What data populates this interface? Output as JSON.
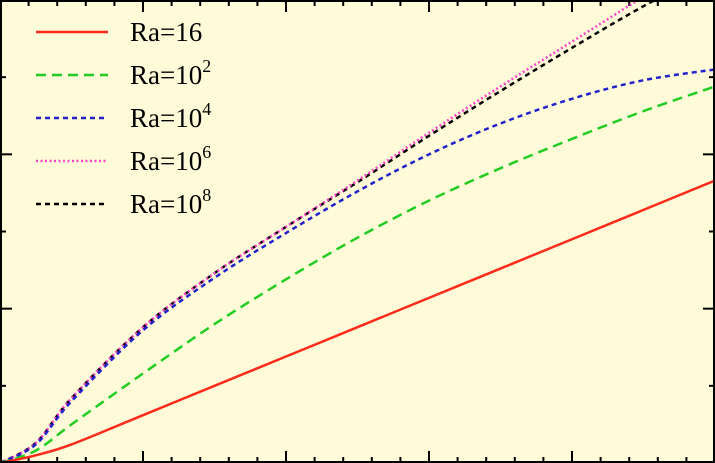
{
  "chart_data": {
    "type": "line",
    "title": "",
    "xlabel": "",
    "ylabel": "",
    "xlim": [
      0,
      5
    ],
    "ylim": [
      0,
      3
    ],
    "x_ticks_major": [
      0,
      1,
      2,
      3,
      4,
      5
    ],
    "y_ticks_major": [
      0,
      1,
      2,
      3
    ],
    "grid": false,
    "legend_position": "top-left",
    "background": "#fffbd8",
    "series": [
      {
        "name": "Ra=16",
        "label_base": "Ra=16",
        "label_exp": "",
        "color": "#ff2a1a",
        "dash": "solid",
        "x": [
          0,
          0.25,
          0.5,
          1,
          1.5,
          2,
          2.5,
          3,
          3.5,
          4,
          4.5,
          5
        ],
        "y": [
          0,
          0.05,
          0.12,
          0.31,
          0.5,
          0.69,
          0.88,
          1.07,
          1.26,
          1.45,
          1.64,
          1.83
        ]
      },
      {
        "name": "Ra=10^2",
        "label_base": "Ra=10",
        "label_exp": "2",
        "color": "#22cc22",
        "dash": "dashed",
        "x": [
          0,
          0.25,
          0.5,
          1,
          1.5,
          2,
          2.5,
          3,
          3.5,
          4,
          4.5,
          5
        ],
        "y": [
          0,
          0.08,
          0.25,
          0.58,
          0.9,
          1.19,
          1.46,
          1.7,
          1.91,
          2.1,
          2.28,
          2.44
        ]
      },
      {
        "name": "Ra=10^4",
        "label_base": "Ra=10",
        "label_exp": "4",
        "color": "#2222cc",
        "dash": "short-dashed",
        "x": [
          0,
          0.25,
          0.5,
          1,
          1.5,
          2,
          2.5,
          3,
          3.5,
          4,
          4.5,
          5
        ],
        "y": [
          0,
          0.12,
          0.4,
          0.86,
          1.2,
          1.49,
          1.76,
          2.0,
          2.2,
          2.36,
          2.48,
          2.55
        ]
      },
      {
        "name": "Ra=10^6",
        "label_base": "Ra=10",
        "label_exp": "6",
        "color": "#ff44cc",
        "dash": "dotted",
        "x": [
          0,
          0.25,
          0.5,
          1,
          1.5,
          2,
          2.5,
          3,
          3.5,
          4,
          4.5,
          5
        ],
        "y": [
          0,
          0.13,
          0.42,
          0.88,
          1.23,
          1.53,
          1.83,
          2.14,
          2.44,
          2.73,
          3.02,
          3.29
        ]
      },
      {
        "name": "Ra=10^8",
        "label_base": "Ra=10",
        "label_exp": "8",
        "color": "#000000",
        "dash": "short-dashed",
        "x": [
          0,
          0.25,
          0.5,
          1,
          1.5,
          2,
          2.5,
          3,
          3.5,
          4,
          4.5,
          5
        ],
        "y": [
          0,
          0.13,
          0.42,
          0.88,
          1.23,
          1.53,
          1.82,
          2.12,
          2.41,
          2.69,
          2.96,
          3.2
        ]
      }
    ]
  }
}
